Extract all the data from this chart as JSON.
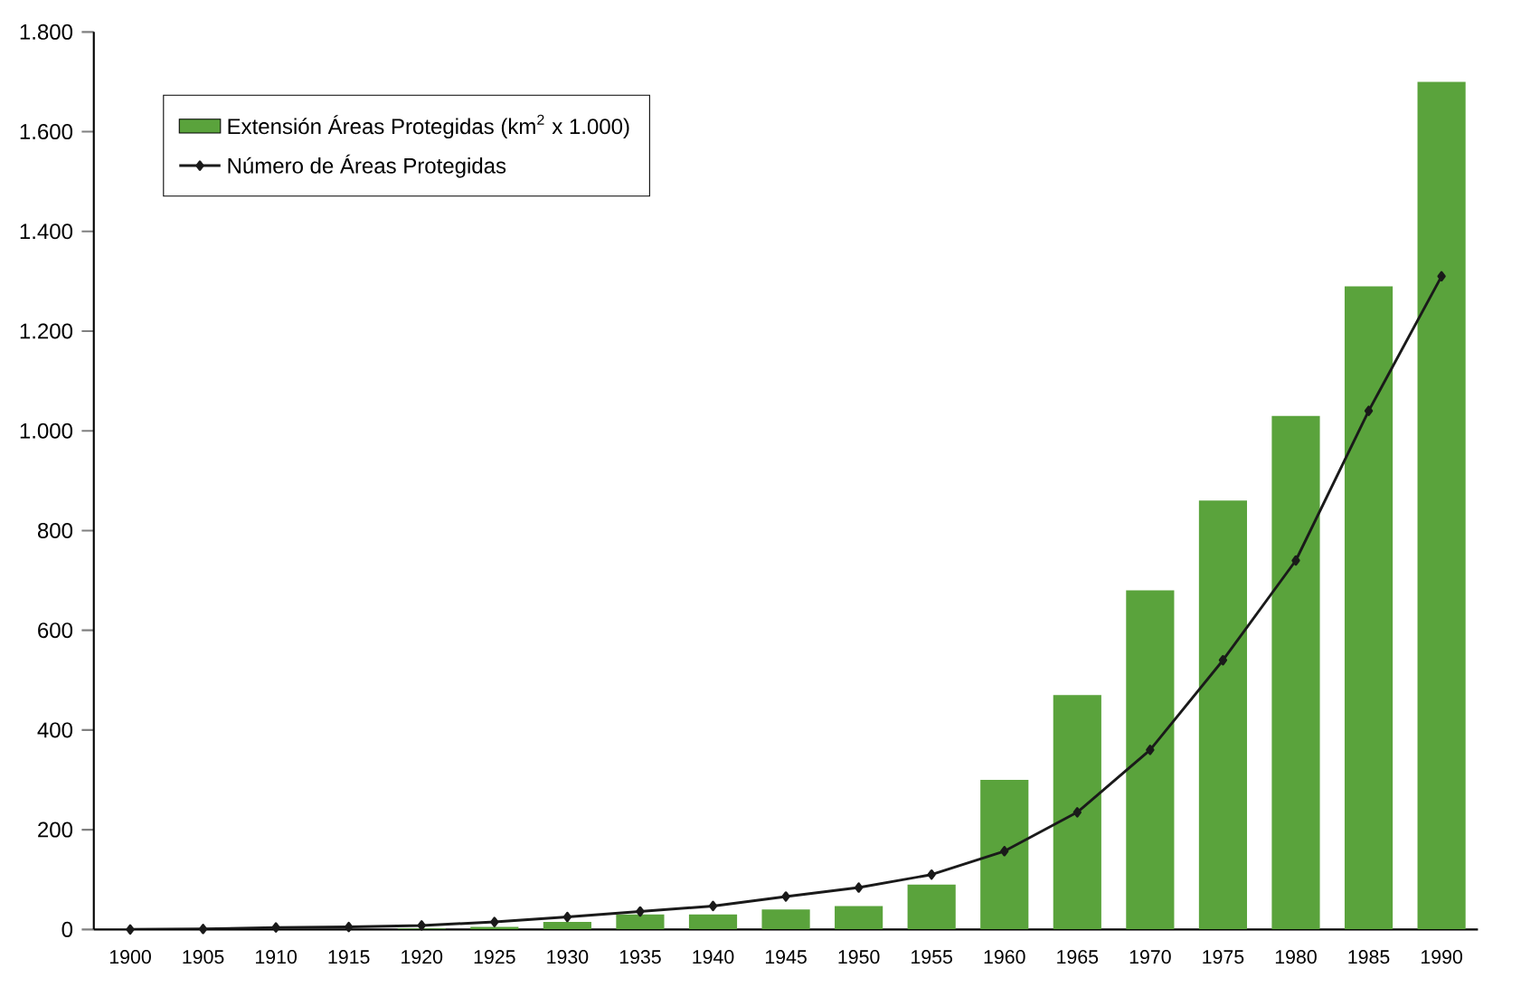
{
  "chart_data": {
    "type": "bar",
    "categories": [
      "1900",
      "1905",
      "1910",
      "1915",
      "1920",
      "1925",
      "1930",
      "1935",
      "1940",
      "1945",
      "1950",
      "1955",
      "1960",
      "1965",
      "1970",
      "1975",
      "1980",
      "1985",
      "1990"
    ],
    "series": [
      {
        "name": "Extensión Áreas Protegidas (km$^{2}$ x 1.000)",
        "color": "#5aa33c",
        "values": [
          0,
          0,
          0,
          0,
          2,
          5,
          15,
          30,
          30,
          40,
          47,
          90,
          300,
          470,
          680,
          860,
          1030,
          1290,
          1700
        ]
      },
      {
        "name": "Número de Áreas  Protegidas",
        "type": "line",
        "color": "#1a1a1a",
        "marker": "diamond",
        "values": [
          0,
          1,
          4,
          5,
          8,
          15,
          25,
          36,
          47,
          66,
          84,
          110,
          157,
          235,
          360,
          540,
          740,
          1040,
          1310
        ]
      }
    ],
    "ylim": [
      0,
      1800
    ],
    "yticks": [
      {
        "value": 0,
        "label": "0"
      },
      {
        "value": 200,
        "label": "200"
      },
      {
        "value": 400,
        "label": "400"
      },
      {
        "value": 600,
        "label": "600"
      },
      {
        "value": 800,
        "label": "800"
      },
      {
        "value": 1000,
        "label": "1.000"
      },
      {
        "value": 1200,
        "label": "1.200"
      },
      {
        "value": 1400,
        "label": "1.400"
      },
      {
        "value": 1600,
        "label": "1.600"
      },
      {
        "value": 1800,
        "label": "1.800"
      }
    ],
    "legend": "top left"
  }
}
